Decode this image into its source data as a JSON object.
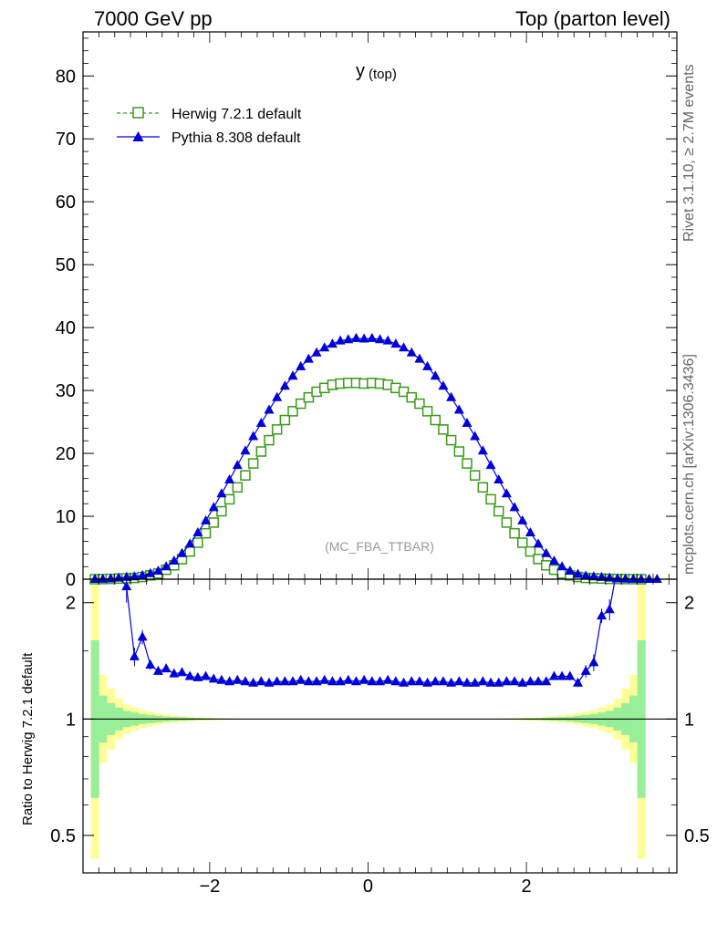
{
  "header": {
    "left": "7000 GeV pp",
    "right": "Top (parton level)"
  },
  "plot_title": {
    "main": "y",
    "sub": "(top)"
  },
  "side_labels": {
    "rivet": "Rivet 3.1.10, ≥ 2.7M events",
    "mcplots": "mcplots.cern.ch [arXiv:1306.3436]"
  },
  "watermark": "(MC_FBA_TTBAR)",
  "ratio_ylabel": "Ratio to Herwig 7.2.1 default",
  "colors": {
    "herwig": "#3a9a1a",
    "pythia": "#0000dd",
    "band_inner": "#99ee99",
    "band_outer": "#ffff99"
  },
  "chart_data": [
    {
      "type": "line",
      "panel": "main",
      "xlim": [
        -3.6,
        3.9
      ],
      "ylim": [
        0,
        87
      ],
      "yticks": [
        0,
        10,
        20,
        30,
        40,
        50,
        60,
        70,
        80
      ],
      "xticks": [
        -2,
        0,
        2
      ],
      "xticklabels": [
        "−2",
        "0",
        "2"
      ],
      "legend_position": "top-left",
      "series": [
        {
          "name": "Herwig 7.2.1 default",
          "marker": "open-square",
          "style": "dashed",
          "x": [
            -3.45,
            -3.35,
            -3.25,
            -3.15,
            -3.05,
            -2.95,
            -2.85,
            -2.75,
            -2.65,
            -2.55,
            -2.45,
            -2.35,
            -2.25,
            -2.15,
            -2.05,
            -1.95,
            -1.85,
            -1.75,
            -1.65,
            -1.55,
            -1.45,
            -1.35,
            -1.25,
            -1.15,
            -1.05,
            -0.95,
            -0.85,
            -0.75,
            -0.65,
            -0.55,
            -0.45,
            -0.35,
            -0.25,
            -0.15,
            -0.05,
            0.05,
            0.15,
            0.25,
            0.35,
            0.45,
            0.55,
            0.65,
            0.75,
            0.85,
            0.95,
            1.05,
            1.15,
            1.25,
            1.35,
            1.45,
            1.55,
            1.65,
            1.75,
            1.85,
            1.95,
            2.05,
            2.15,
            2.25,
            2.35,
            2.45,
            2.55,
            2.65,
            2.75,
            2.85,
            2.95,
            3.05,
            3.15,
            3.25,
            3.35,
            3.45
          ],
          "values": [
            0,
            0.02,
            0.05,
            0.1,
            0.15,
            0.2,
            0.35,
            0.6,
            0.9,
            1.5,
            2.2,
            3.2,
            4.4,
            5.8,
            7.3,
            9.0,
            10.8,
            12.7,
            14.6,
            16.5,
            18.4,
            20.3,
            22.1,
            23.8,
            25.3,
            26.7,
            27.9,
            28.9,
            29.8,
            30.4,
            30.9,
            31.1,
            31.2,
            31.2,
            31.1,
            31.2,
            31.1,
            30.9,
            30.4,
            29.8,
            28.9,
            27.9,
            26.7,
            25.3,
            23.8,
            22.1,
            20.3,
            18.4,
            16.5,
            14.6,
            12.7,
            10.8,
            9.0,
            7.3,
            5.8,
            4.4,
            3.2,
            2.2,
            1.5,
            0.9,
            0.6,
            0.35,
            0.2,
            0.15,
            0.1,
            0.05,
            0.03,
            0.02,
            0.01,
            0
          ]
        },
        {
          "name": "Pythia 8.308 default",
          "marker": "filled-triangle",
          "style": "solid",
          "x": [
            -3.45,
            -3.35,
            -3.25,
            -3.15,
            -3.05,
            -2.95,
            -2.85,
            -2.75,
            -2.65,
            -2.55,
            -2.45,
            -2.35,
            -2.25,
            -2.15,
            -2.05,
            -1.95,
            -1.85,
            -1.75,
            -1.65,
            -1.55,
            -1.45,
            -1.35,
            -1.25,
            -1.15,
            -1.05,
            -0.95,
            -0.85,
            -0.75,
            -0.65,
            -0.55,
            -0.45,
            -0.35,
            -0.25,
            -0.15,
            -0.05,
            0.05,
            0.15,
            0.25,
            0.35,
            0.45,
            0.55,
            0.65,
            0.75,
            0.85,
            0.95,
            1.05,
            1.15,
            1.25,
            1.35,
            1.45,
            1.55,
            1.65,
            1.75,
            1.85,
            1.95,
            2.05,
            2.15,
            2.25,
            2.35,
            2.45,
            2.55,
            2.65,
            2.75,
            2.85,
            2.95,
            3.05,
            3.15,
            3.25,
            3.35,
            3.45,
            3.55,
            3.65
          ],
          "values": [
            0,
            0.02,
            0.08,
            0.2,
            0.3,
            0.4,
            0.6,
            0.9,
            1.3,
            2.0,
            2.9,
            4.1,
            5.6,
            7.4,
            9.3,
            11.4,
            13.6,
            15.8,
            18.1,
            20.4,
            22.7,
            24.8,
            26.9,
            28.9,
            30.7,
            32.3,
            33.8,
            35.0,
            36.0,
            36.8,
            37.4,
            37.9,
            38.1,
            38.3,
            38.2,
            38.3,
            38.1,
            37.9,
            37.4,
            36.8,
            36.0,
            35.0,
            33.8,
            32.3,
            30.7,
            28.9,
            26.9,
            24.8,
            22.7,
            20.4,
            18.1,
            15.8,
            13.6,
            11.4,
            9.3,
            7.4,
            5.6,
            4.1,
            2.9,
            2.0,
            1.3,
            0.8,
            0.5,
            0.4,
            0.3,
            0.2,
            0.08,
            0.03,
            0.01,
            0,
            0,
            0
          ]
        }
      ]
    },
    {
      "type": "line",
      "panel": "ratio",
      "ylabel": "Ratio to Herwig 7.2.1 default",
      "ylim": [
        0.4,
        2.3
      ],
      "log_y": true,
      "yticks": [
        0.5,
        1,
        2
      ],
      "yticklabels": [
        "0.5",
        "1",
        "2"
      ],
      "xlim": [
        -3.6,
        3.9
      ],
      "xticks": [
        -2,
        0,
        2
      ],
      "xticklabels": [
        "−2",
        "0",
        "2"
      ],
      "series": [
        {
          "name": "Pythia 8.308 default",
          "x": [
            -3.05,
            -2.95,
            -2.85,
            -2.75,
            -2.65,
            -2.55,
            -2.45,
            -2.35,
            -2.25,
            -2.15,
            -2.05,
            -1.95,
            -1.85,
            -1.75,
            -1.65,
            -1.55,
            -1.45,
            -1.35,
            -1.25,
            -1.15,
            -1.05,
            -0.95,
            -0.85,
            -0.75,
            -0.65,
            -0.55,
            -0.45,
            -0.35,
            -0.25,
            -0.15,
            -0.05,
            0.05,
            0.15,
            0.25,
            0.35,
            0.45,
            0.55,
            0.65,
            0.75,
            0.85,
            0.95,
            1.05,
            1.15,
            1.25,
            1.35,
            1.45,
            1.55,
            1.65,
            1.75,
            1.85,
            1.95,
            2.05,
            2.15,
            2.25,
            2.35,
            2.45,
            2.55,
            2.65,
            2.75,
            2.85,
            2.95,
            3.05
          ],
          "values": [
            2.2,
            1.45,
            1.63,
            1.38,
            1.33,
            1.35,
            1.31,
            1.32,
            1.29,
            1.28,
            1.29,
            1.27,
            1.26,
            1.25,
            1.26,
            1.25,
            1.24,
            1.25,
            1.24,
            1.25,
            1.25,
            1.25,
            1.26,
            1.25,
            1.25,
            1.26,
            1.25,
            1.25,
            1.26,
            1.25,
            1.26,
            1.25,
            1.25,
            1.26,
            1.25,
            1.24,
            1.25,
            1.25,
            1.24,
            1.25,
            1.25,
            1.24,
            1.25,
            1.24,
            1.24,
            1.25,
            1.24,
            1.24,
            1.25,
            1.25,
            1.24,
            1.25,
            1.25,
            1.25,
            1.29,
            1.29,
            1.29,
            1.24,
            1.33,
            1.4,
            1.85,
            1.92
          ],
          "errors": [
            0.2,
            0.08,
            0.07,
            0.04,
            0.03,
            0.02,
            0.02,
            0.01,
            0.01,
            0.01,
            0.01,
            0.01,
            0.01,
            0.01,
            0.01,
            0.01,
            0.01,
            0.01,
            0.01,
            0.01,
            0.01,
            0.01,
            0.01,
            0.01,
            0.01,
            0.01,
            0.01,
            0.01,
            0.01,
            0.01,
            0.01,
            0.01,
            0.01,
            0.01,
            0.01,
            0.01,
            0.01,
            0.01,
            0.01,
            0.01,
            0.01,
            0.01,
            0.01,
            0.01,
            0.01,
            0.01,
            0.01,
            0.01,
            0.01,
            0.01,
            0.01,
            0.01,
            0.01,
            0.01,
            0.02,
            0.02,
            0.03,
            0.03,
            0.05,
            0.07,
            0.08,
            0.12
          ]
        }
      ],
      "bands": {
        "inner": {
          "x_left": [
            -3.45,
            -3.35,
            -3.25,
            -3.15,
            -3.05,
            -2.95,
            -2.85,
            -2.75,
            -2.65,
            -2.55,
            -2.45,
            -2.35,
            -2.25,
            -2.15,
            -2.05,
            -1.95,
            -1.85,
            -1.75,
            -1.65,
            -1.55
          ],
          "up": [
            1.6,
            1.15,
            1.1,
            1.07,
            1.05,
            1.04,
            1.03,
            1.025,
            1.02,
            1.015,
            1.012,
            1.01,
            1.008,
            1.006,
            1.005,
            1.004,
            1.003,
            1.002,
            1.002,
            1.001
          ]
        },
        "outer": {
          "x_left": [
            -3.45,
            -3.35,
            -3.25,
            -3.15,
            -3.05,
            -2.95,
            -2.85,
            -2.75,
            -2.65,
            -2.55,
            -2.45,
            -2.35,
            -2.25,
            -2.15,
            -2.05,
            -1.95,
            -1.85,
            -1.75,
            -1.65,
            -1.55
          ],
          "up": [
            2.3,
            1.3,
            1.2,
            1.13,
            1.09,
            1.07,
            1.055,
            1.045,
            1.035,
            1.028,
            1.022,
            1.018,
            1.014,
            1.011,
            1.009,
            1.007,
            1.005,
            1.004,
            1.003,
            1.002
          ]
        }
      }
    }
  ]
}
